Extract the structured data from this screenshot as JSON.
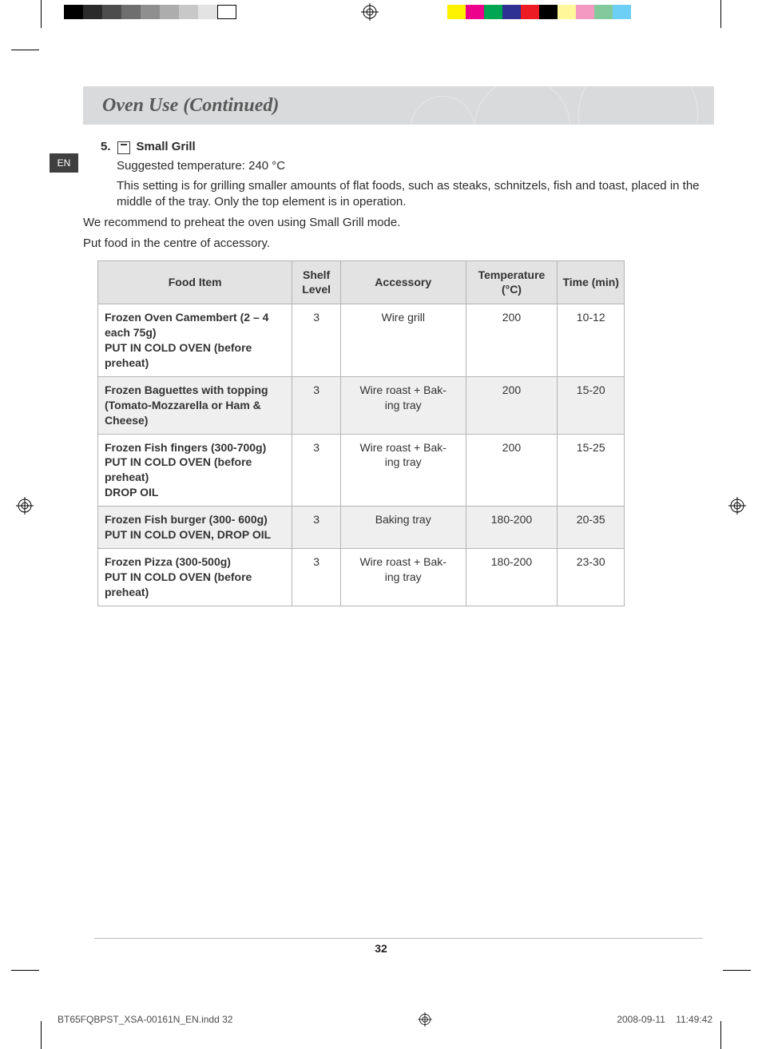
{
  "printer_marks": {
    "gray_steps": [
      "#000000",
      "#2b2b2b",
      "#4d4d4d",
      "#6f6f6f",
      "#8f8f8f",
      "#adadad",
      "#c8c8c8",
      "#e3e3e3",
      "#ffffff"
    ],
    "gray_step_width": 24,
    "color_bar": [
      "#fff200",
      "#ec008c",
      "#00a651",
      "#2e3192",
      "#ed1c24",
      "#000000",
      "#fff799",
      "#f49ac1",
      "#82ca9c",
      "#6dcff6"
    ]
  },
  "lang_tab": "EN",
  "header": {
    "title": "Oven Use (Continued)"
  },
  "section": {
    "number": "5.",
    "mode_name": "Small Grill",
    "suggested_temp_line": "Suggested temperature: 240 °C",
    "description": "This setting is for grilling smaller amounts of flat foods, such as steaks, schnitzels, fish and toast, placed in the middle of the tray. Only the top element is in operation.",
    "note1": "We recommend to preheat the oven using Small Grill mode.",
    "note2": "Put food in the centre of accessory."
  },
  "table": {
    "columns": {
      "food": "Food Item",
      "shelf": "Shelf Level",
      "accessory": "Accessory",
      "temp": "Temperature (°C)",
      "time": "Time (min)"
    },
    "rows": [
      {
        "food": "Frozen Oven Camembert (2 – 4 each 75g)\nPUT IN COLD OVEN (before preheat)",
        "shelf": "3",
        "accessory": "Wire grill",
        "temp": "200",
        "time": "10-12",
        "shaded": false
      },
      {
        "food": "Frozen Baguettes with topping (Tomato-Mozzarella or Ham & Cheese)",
        "shelf": "3",
        "accessory": "Wire roast + Bak-\ning tray",
        "temp": "200",
        "time": "15-20",
        "shaded": true
      },
      {
        "food": "Frozen Fish fingers (300-700g)\nPUT IN COLD OVEN (before preheat)\nDROP OIL",
        "shelf": "3",
        "accessory": "Wire roast + Bak-\ning tray",
        "temp": "200",
        "time": "15-25",
        "shaded": false
      },
      {
        "food": "Frozen Fish burger (300- 600g)\nPUT IN COLD OVEN, DROP OIL",
        "shelf": "3",
        "accessory": "Baking tray",
        "temp": "180-200",
        "time": "20-35",
        "shaded": true
      },
      {
        "food": "Frozen Pizza (300-500g)\nPUT IN COLD OVEN (before preheat)",
        "shelf": "3",
        "accessory": "Wire roast + Bak-\ning tray",
        "temp": "180-200",
        "time": "23-30",
        "shaded": false
      }
    ]
  },
  "page_number": "32",
  "footer": {
    "left": "BT65FQBPST_XSA-00161N_EN.indd   32",
    "date": "2008-09-11",
    "time": "11:49:42"
  }
}
